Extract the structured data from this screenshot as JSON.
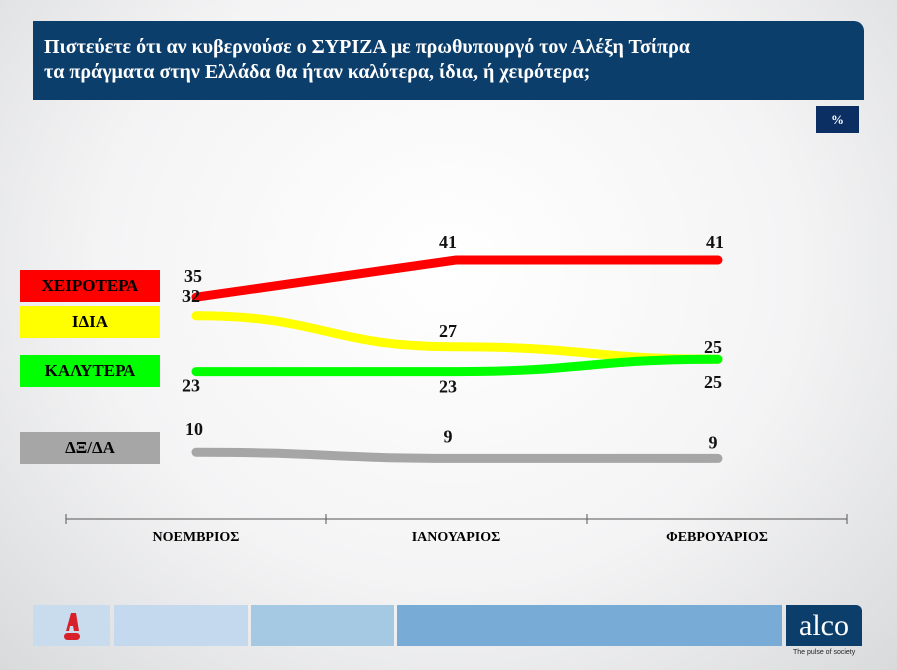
{
  "title": {
    "line1": "Πιστεύετε ότι αν κυβερνούσε ο ΣΥΡΙΖΑ με πρωθυπουργό τον Αλέξη Τσίπρα",
    "line2": "τα πράγματα στην Ελλάδα θα ήταν καλύτερα, ίδια, ή χειρότερα;"
  },
  "unit_badge": "%",
  "chart_data": {
    "type": "line",
    "title": "Πιστεύετε ότι αν κυβερνούσε ο ΣΥΡΙΖΑ με πρωθυπουργό τον Αλέξη Τσίπρα τα πράγματα στην Ελλάδα θα ήταν καλύτερα, ίδια, ή χειρότερα;",
    "categories": [
      "ΝΟΕΜΒΡΙΟΣ",
      "ΙΑΝΟΥΑΡΙΟΣ",
      "ΦΕΒΡΟΥΑΡΙΟΣ"
    ],
    "ylabel": "%",
    "legend_position": "left",
    "grid": false,
    "series": [
      {
        "name": "ΧΕΙΡΟΤΕΡΑ",
        "color": "#ff0000",
        "values": [
          35,
          41,
          41
        ]
      },
      {
        "name": "ΙΔΙΑ",
        "color": "#ffff00",
        "values": [
          32,
          27,
          25
        ]
      },
      {
        "name": "ΚΑΛΥΤΕΡΑ",
        "color": "#00ff00",
        "values": [
          23,
          23,
          25
        ]
      },
      {
        "name": "ΔΞ/ΔΑ",
        "color": "#a6a6a6",
        "values": [
          10,
          9,
          9
        ]
      }
    ]
  },
  "footer": {
    "logo_text": "alco",
    "tagline": "The pulse of society",
    "news_logo": "A NEWS"
  }
}
